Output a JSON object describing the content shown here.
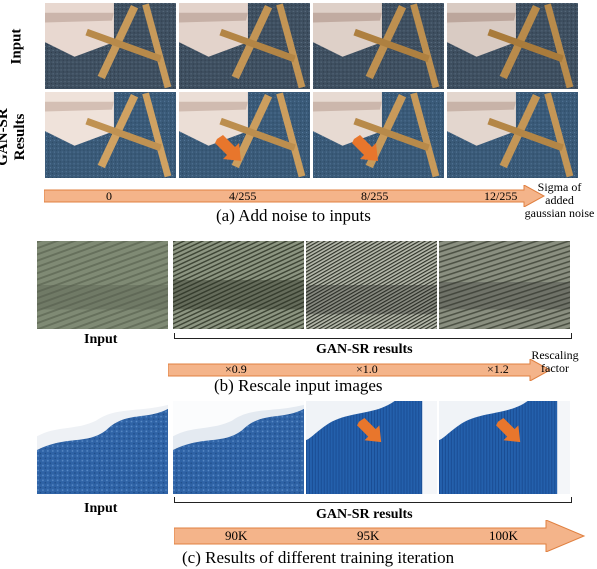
{
  "section_a": {
    "row_labels": {
      "input": "Input",
      "results": "GAN-SR Results"
    },
    "ticks": [
      "0",
      "4/255",
      "8/255",
      "12/255"
    ],
    "axis_label_line1": "Sigma of added",
    "axis_label_line2": "gaussian noise",
    "caption": "(a) Add noise to inputs"
  },
  "section_b": {
    "input_label": "Input",
    "results_label": "GAN-SR results",
    "ticks": [
      "×0.9",
      "×1.0",
      "×1.2"
    ],
    "axis_label_line1": "Rescaling",
    "axis_label_line2": "factor",
    "caption": "(b) Rescale input images"
  },
  "section_c": {
    "input_label": "Input",
    "results_label": "GAN-SR results",
    "ticks": [
      "90K",
      "95K",
      "100K"
    ],
    "caption": "(c) Results of different training iteration"
  },
  "colors": {
    "arrow_fill": "#f4b48a",
    "arrow_stroke": "#e08040",
    "pointer_arrow": "#e8762c"
  }
}
